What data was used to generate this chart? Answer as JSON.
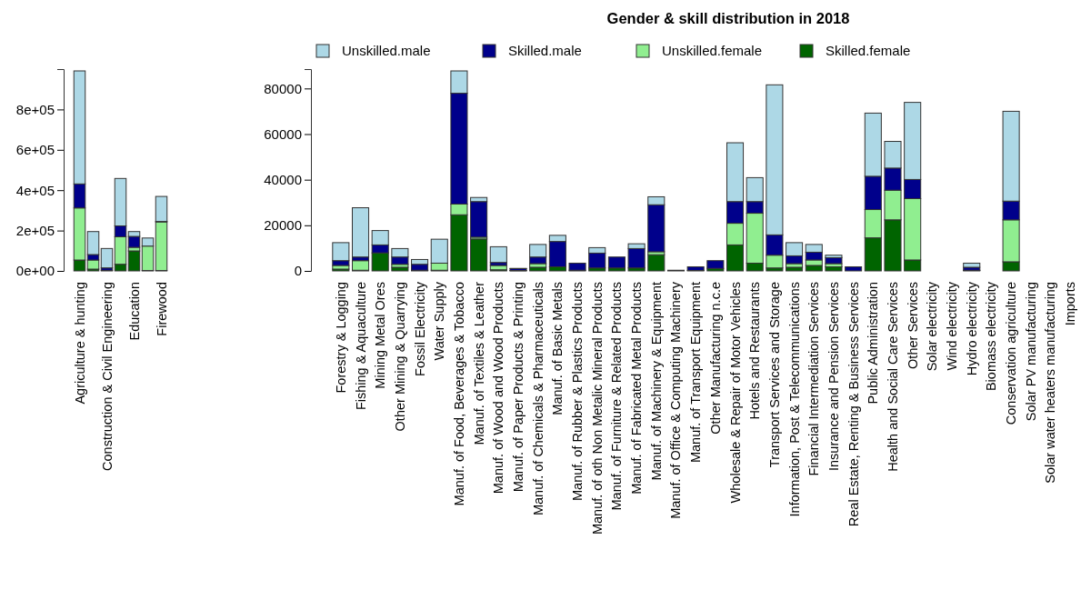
{
  "chart_data": [
    {
      "type": "bar",
      "stacked": true,
      "categories": [
        "Agriculture & hunting",
        null,
        "Construction & Civil Engineering",
        null,
        "Education",
        null,
        "Firewood"
      ],
      "series": [
        {
          "color": "#006400",
          "values": [
            54000,
            9000,
            3000,
            33000,
            99000,
            2000,
            2000
          ]
        },
        {
          "color": "#90ee90",
          "values": [
            258000,
            45000,
            null,
            136000,
            18000,
            121000,
            241000
          ]
        },
        {
          "color": "#00008b",
          "values": [
            119000,
            27000,
            12000,
            54000,
            54000,
            null,
            2000
          ]
        },
        {
          "color": "#add8e6",
          "values": [
            560000,
            114000,
            96000,
            235000,
            24000,
            40000,
            124000
          ]
        }
      ],
      "ylim": [
        0,
        1000000
      ],
      "yticks": [
        {
          "value": 0,
          "label": "0e+00"
        },
        {
          "value": 200000,
          "label": "2e+05"
        },
        {
          "value": 400000,
          "label": "4e+05"
        },
        {
          "value": 600000,
          "label": "6e+05"
        },
        {
          "value": 800000,
          "label": "8e+05"
        }
      ],
      "grid": false,
      "legend": false
    },
    {
      "type": "bar",
      "stacked": true,
      "title": "Gender & skill distribution in 2018",
      "categories": [
        "Forestry & Logging",
        "Fishing & Aquaculture",
        "Mining Metal Ores",
        "Other Mining & Quarrying",
        "Fossil Electricity",
        "Water Supply",
        "Manuf. of Food, Beverages & Tobacco",
        "Manuf. of Textiles & Leather",
        "Manuf. of Wood and Wood Products",
        "Manuf. of Paper Products & Printing",
        "Manuf. of Chemicals & Pharmaceuticals",
        "Manuf. of Basic Metals",
        "Manuf. of Rubber & Plastics Products",
        "Manuf. of oth Non Metalic Mineral Products",
        "Manuf. of Furniture & Related Products",
        "Manuf. of Fabricated Metal Products",
        "Manuf. of Machinery & Equipment",
        "Manuf. of Office & Computing Machinery",
        "Manuf. of Transport Equipment",
        "Other Manufacturing n.c.e",
        "Wholesale & Repair of Motor Vehicles",
        "Hotels and Restaurants",
        "Transport Services and Storage",
        "Information, Post & Telecommunications",
        "Financial Intermediation Services",
        "Insurance and Pension Services",
        "Real Estate, Renting & Business Services",
        "Public Administration",
        "Health  and Social Care Services",
        "Other Services",
        "Solar electricity",
        "Wind electricity",
        "Hydro electricity",
        "Biomass electricity",
        "Conservation agriculture",
        "Solar PV manufacturing",
        "Solar water heaters manufacturing",
        "Imports"
      ],
      "series": [
        {
          "name": "Skilled.female",
          "color": "#006400",
          "values": [
            800,
            300,
            7900,
            1600,
            200,
            300,
            24600,
            14000,
            500,
            100,
            1600,
            1800,
            300,
            1300,
            1300,
            1300,
            7100,
            0,
            200,
            1100,
            11400,
            3400,
            1300,
            1600,
            2400,
            1800,
            0,
            14500,
            22400,
            4800,
            0,
            0,
            200,
            0,
            4000,
            0,
            0,
            0
          ]
        },
        {
          "name": "Unskilled.female",
          "color": "#90ee90",
          "values": [
            1600,
            4200,
            0,
            1300,
            100,
            3100,
            4700,
            800,
            1900,
            100,
            1600,
            0,
            0,
            null,
            0,
            0,
            1300,
            0,
            0,
            0,
            9500,
            21900,
            5600,
            1600,
            2400,
            1400,
            0,
            12400,
            13000,
            26900,
            0,
            0,
            100,
            0,
            18400,
            0,
            0,
            0
          ]
        },
        {
          "name": "Skilled.male",
          "color": "#00008b",
          "values": [
            2100,
            1600,
            3500,
            3200,
            2600,
            null,
            48600,
            15600,
            1300,
            800,
            2900,
            11100,
            3100,
            6500,
            4800,
            8500,
            20600,
            300,
            1600,
            3400,
            9500,
            5100,
            8900,
            3400,
            3400,
            2600,
            1800,
            14600,
            9700,
            8400,
            0,
            0,
            1300,
            0,
            8200,
            0,
            0,
            0
          ]
        },
        {
          "name": "Unskilled.male",
          "color": "#add8e6",
          "values": [
            7900,
            21600,
            6300,
            3700,
            2100,
            10500,
            9800,
            1800,
            6900,
            100,
            5500,
            2700,
            0,
            2400,
            0,
            2100,
            3500,
            0,
            0,
            0,
            25800,
            10500,
            65800,
            5800,
            3400,
            1100,
            null,
            27700,
            11700,
            33800,
            0,
            0,
            1800,
            0,
            39400,
            0,
            0,
            0
          ]
        }
      ],
      "ylim": [
        0,
        88500
      ],
      "yticks": [
        0,
        20000,
        40000,
        60000,
        80000
      ],
      "grid": false,
      "legend": "top"
    }
  ]
}
